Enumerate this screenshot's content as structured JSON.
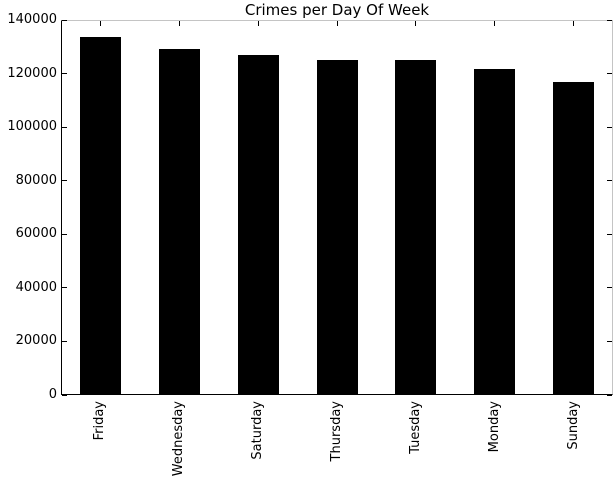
{
  "chart_data": {
    "type": "bar",
    "title": "Crimes per Day Of Week",
    "categories": [
      "Friday",
      "Wednesday",
      "Saturday",
      "Thursday",
      "Tuesday",
      "Monday",
      "Sunday"
    ],
    "values": [
      133734,
      129211,
      126810,
      125038,
      124965,
      121584,
      116707
    ],
    "xlabel": "",
    "ylabel": "",
    "ylim": [
      0,
      140000
    ],
    "yticks": [
      0,
      20000,
      40000,
      60000,
      80000,
      100000,
      120000,
      140000
    ],
    "ytick_labels": [
      "0",
      "20000",
      "40000",
      "60000",
      "80000",
      "100000",
      "120000",
      "140000"
    ],
    "xtick_rotation_degrees": 90,
    "grid": false,
    "legend": null,
    "bar_color": "#000000",
    "text_color": "#000000",
    "background_color": "#ffffff",
    "spine_colors": {
      "left": "#000000",
      "bottom": "#000000",
      "top": "#c4c4c4",
      "right": "#c4c4c4"
    }
  }
}
